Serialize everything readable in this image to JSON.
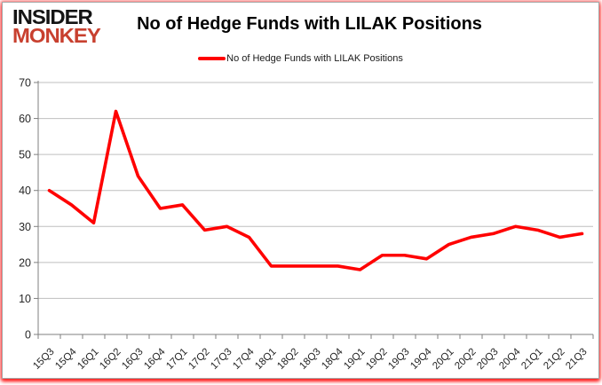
{
  "logo": {
    "line1": "INSIDER",
    "line2": "MONKEY",
    "color_primary": "#141414",
    "color_accent": "#c8402f"
  },
  "header": {
    "title": "No of Hedge Funds with LILAK Positions"
  },
  "legend": {
    "label": "No of Hedge Funds with LILAK Positions",
    "swatch_color": "#ff0000",
    "position": "top"
  },
  "chart_data": {
    "type": "line",
    "title": "No of Hedge Funds with LILAK Positions",
    "categories": [
      "15Q3",
      "15Q4",
      "16Q1",
      "16Q2",
      "16Q3",
      "16Q4",
      "17Q1",
      "17Q2",
      "17Q3",
      "17Q4",
      "18Q1",
      "18Q2",
      "18Q3",
      "18Q4",
      "19Q1",
      "19Q2",
      "19Q3",
      "19Q4",
      "20Q1",
      "20Q2",
      "20Q3",
      "20Q4",
      "21Q1",
      "21Q2",
      "21Q3"
    ],
    "series": [
      {
        "name": "No of Hedge Funds with LILAK Positions",
        "color": "#ff0000",
        "values": [
          40,
          36,
          31,
          62,
          44,
          35,
          36,
          29,
          30,
          27,
          19,
          19,
          19,
          19,
          18,
          22,
          22,
          21,
          25,
          27,
          28,
          30,
          29,
          27,
          28
        ]
      }
    ],
    "xlabel": "",
    "ylabel": "",
    "ylim": [
      0,
      70
    ],
    "yticks": [
      0,
      10,
      20,
      30,
      40,
      50,
      60,
      70
    ],
    "grid": true,
    "legend_position": "top",
    "gridline_color": "#bfbfbf",
    "axis_color": "#7f7f7f",
    "tick_label_color": "#262626"
  }
}
